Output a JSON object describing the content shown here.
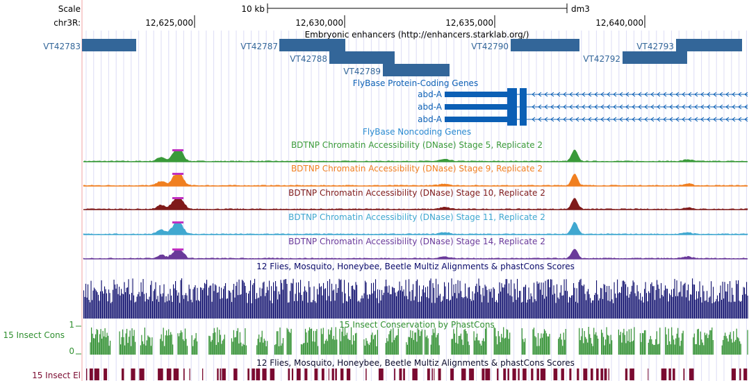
{
  "scale": {
    "label": "Scale",
    "span_label": "10 kb",
    "assembly": "dm3"
  },
  "position": {
    "chrom_label": "chr3R:",
    "ticks": [
      "12,625,000",
      "12,630,000",
      "12,635,000",
      "12,640,000"
    ]
  },
  "colors": {
    "enhancer": "#336699",
    "gene": "#0b5fb5",
    "guideline": "#d6d6f5",
    "left_margin_line": "#f0a0a0",
    "green": "#3a9a3a",
    "orange": "#f07f20",
    "maroon": "#7f1a1a",
    "lightblue": "#40a8d0",
    "purple": "#6a3a9a",
    "navy": "#0a0a6a",
    "cons_green": "#2f8f2f",
    "el_maroon": "#7a0a30",
    "peak_top": "#c030c0"
  },
  "tracks": {
    "enhancers": {
      "title": "Embryonic enhancers (http://enhancers.starklab.org/)",
      "items": [
        {
          "name": "VT42783"
        },
        {
          "name": "VT42787"
        },
        {
          "name": "VT42788"
        },
        {
          "name": "VT42789"
        },
        {
          "name": "VT42790"
        },
        {
          "name": "VT42792"
        },
        {
          "name": "VT42793"
        }
      ]
    },
    "protein_coding": {
      "title": "FlyBase Protein-Coding Genes",
      "genes": [
        "abd-A",
        "abd-A",
        "abd-A"
      ]
    },
    "noncoding": {
      "title": "FlyBase Noncoding Genes"
    },
    "dnase": [
      {
        "title": "BDTNP Chromatin Accessibility (DNase) Stage 5, Replicate 2",
        "color": "#3a9a3a"
      },
      {
        "title": "BDTNP Chromatin Accessibility (DNase) Stage 9, Replicate 2",
        "color": "#f07f20"
      },
      {
        "title": "BDTNP Chromatin Accessibility (DNase) Stage 10, Replicate 2",
        "color": "#7f1a1a"
      },
      {
        "title": "BDTNP Chromatin Accessibility (DNase) Stage 11, Replicate 2",
        "color": "#40a8d0"
      },
      {
        "title": "BDTNP Chromatin Accessibility (DNase) Stage 14, Replicate 2",
        "color": "#6a3a9a"
      }
    ],
    "multiz": {
      "title": "12 Flies, Mosquito, Honeybee, Beetle Multiz Alignments & phastCons Scores"
    },
    "phastcons": {
      "title": "15 Insect Conservation by PhastCons",
      "left_label": "15 Insect Cons",
      "y_max": "1",
      "y_min": "0"
    },
    "elements": {
      "title": "12 Flies, Mosquito, Honeybee, Beetle Multiz Alignments & phastCons Scores",
      "left_label": "15 Insect El"
    }
  }
}
